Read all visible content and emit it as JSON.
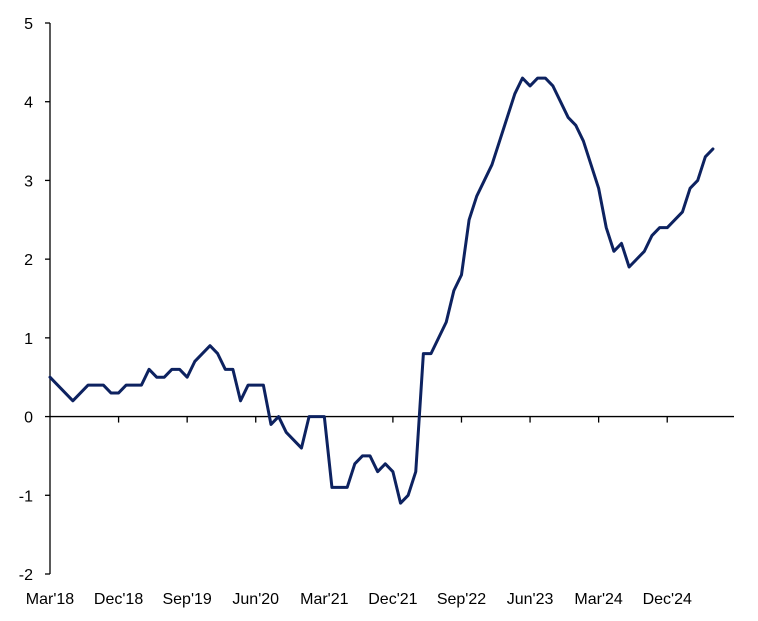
{
  "colors": {
    "series": "#0d2260",
    "axis": "#000000",
    "background": "#ffffff"
  },
  "chart_data": {
    "type": "line",
    "title": "",
    "xlabel": "",
    "ylabel": "",
    "grid": false,
    "legend": "none",
    "ylim": [
      -2,
      5
    ],
    "yticks": [
      -2,
      -1,
      0,
      1,
      2,
      3,
      4,
      5
    ],
    "x_start": "Mar'18",
    "x_ticks": [
      "Mar'18",
      "Dec'18",
      "Sep'19",
      "Jun'20",
      "Mar'21",
      "Dec'21",
      "Sep'22",
      "Jun'23",
      "Mar'24",
      "Dec'24"
    ],
    "series": [
      {
        "name": "series",
        "values": [
          0.5,
          0.4,
          0.3,
          0.2,
          0.3,
          0.4,
          0.4,
          0.4,
          0.3,
          0.3,
          0.4,
          0.4,
          0.4,
          0.6,
          0.5,
          0.5,
          0.6,
          0.6,
          0.5,
          0.7,
          0.8,
          0.9,
          0.8,
          0.6,
          0.6,
          0.2,
          0.4,
          0.4,
          0.4,
          -0.1,
          0.0,
          -0.2,
          -0.3,
          -0.4,
          0.0,
          0.0,
          0.0,
          -0.9,
          -0.9,
          -0.9,
          -0.6,
          -0.5,
          -0.5,
          -0.7,
          -0.6,
          -0.7,
          -1.1,
          -1.0,
          -0.7,
          0.8,
          0.8,
          1.0,
          1.2,
          1.6,
          1.8,
          2.5,
          2.8,
          3.0,
          3.2,
          3.5,
          3.8,
          4.1,
          4.3,
          4.2,
          4.3,
          4.3,
          4.2,
          4.0,
          3.8,
          3.7,
          3.5,
          3.2,
          2.9,
          2.4,
          2.1,
          2.2,
          1.9,
          2.0,
          2.1,
          2.3,
          2.4,
          2.4,
          2.5,
          2.6,
          2.9,
          3.0,
          3.3,
          3.4
        ]
      }
    ]
  }
}
